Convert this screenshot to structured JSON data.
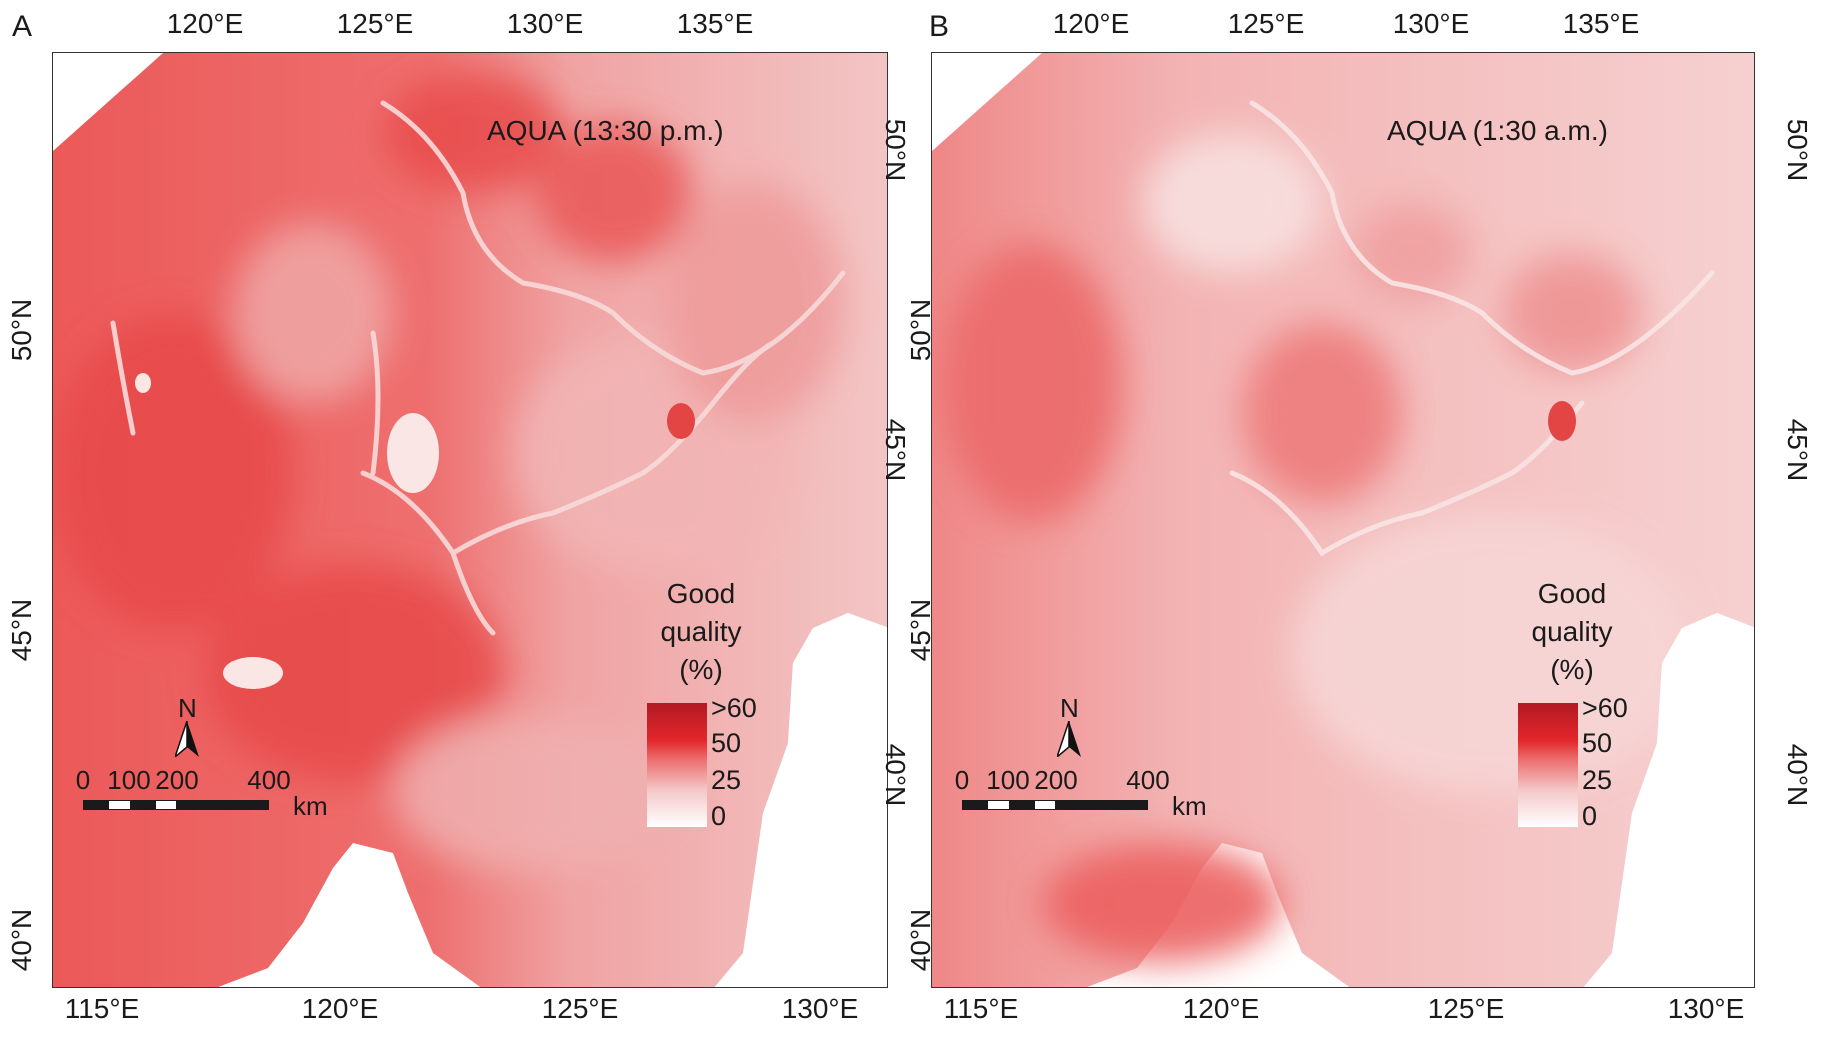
{
  "panels": [
    {
      "letter": "A",
      "title": "AQUA (13:30 p.m.)",
      "top_ticks": [
        "120°E",
        "125°E",
        "130°E",
        "135°E"
      ],
      "bottom_ticks": [
        "115°E",
        "120°E",
        "125°E",
        "130°E"
      ],
      "left_ticks": [
        "40°N",
        "45°N",
        "50°N"
      ],
      "right_ticks": [
        "40°N",
        "45°N",
        "50°N"
      ],
      "legend": {
        "title_lines": [
          "Good",
          "quality",
          "(%)"
        ],
        "labels": [
          ">60",
          "50",
          "25",
          "0"
        ]
      },
      "north": "N",
      "scale": {
        "labels": [
          "0",
          "100",
          "200",
          "400"
        ],
        "unit": "km"
      }
    },
    {
      "letter": "B",
      "title": "AQUA (1:30 a.m.)",
      "top_ticks": [
        "120°E",
        "125°E",
        "130°E",
        "135°E"
      ],
      "bottom_ticks": [
        "115°E",
        "120°E",
        "125°E",
        "130°E"
      ],
      "left_ticks": [
        "40°N",
        "45°N",
        "50°N"
      ],
      "right_ticks": [
        "40°N",
        "45°N",
        "50°N"
      ],
      "legend": {
        "title_lines": [
          "Good",
          "quality",
          "(%)"
        ],
        "labels": [
          ">60",
          "50",
          "25",
          "0"
        ]
      },
      "north": "N",
      "scale": {
        "labels": [
          "0",
          "100",
          "200",
          "400"
        ],
        "unit": "km"
      }
    }
  ],
  "colors": {
    "high": "#b21a24",
    "mid": "#e3262b",
    "low": "#f4c7c7",
    "none": "#ffffff",
    "frame": "#333333"
  }
}
